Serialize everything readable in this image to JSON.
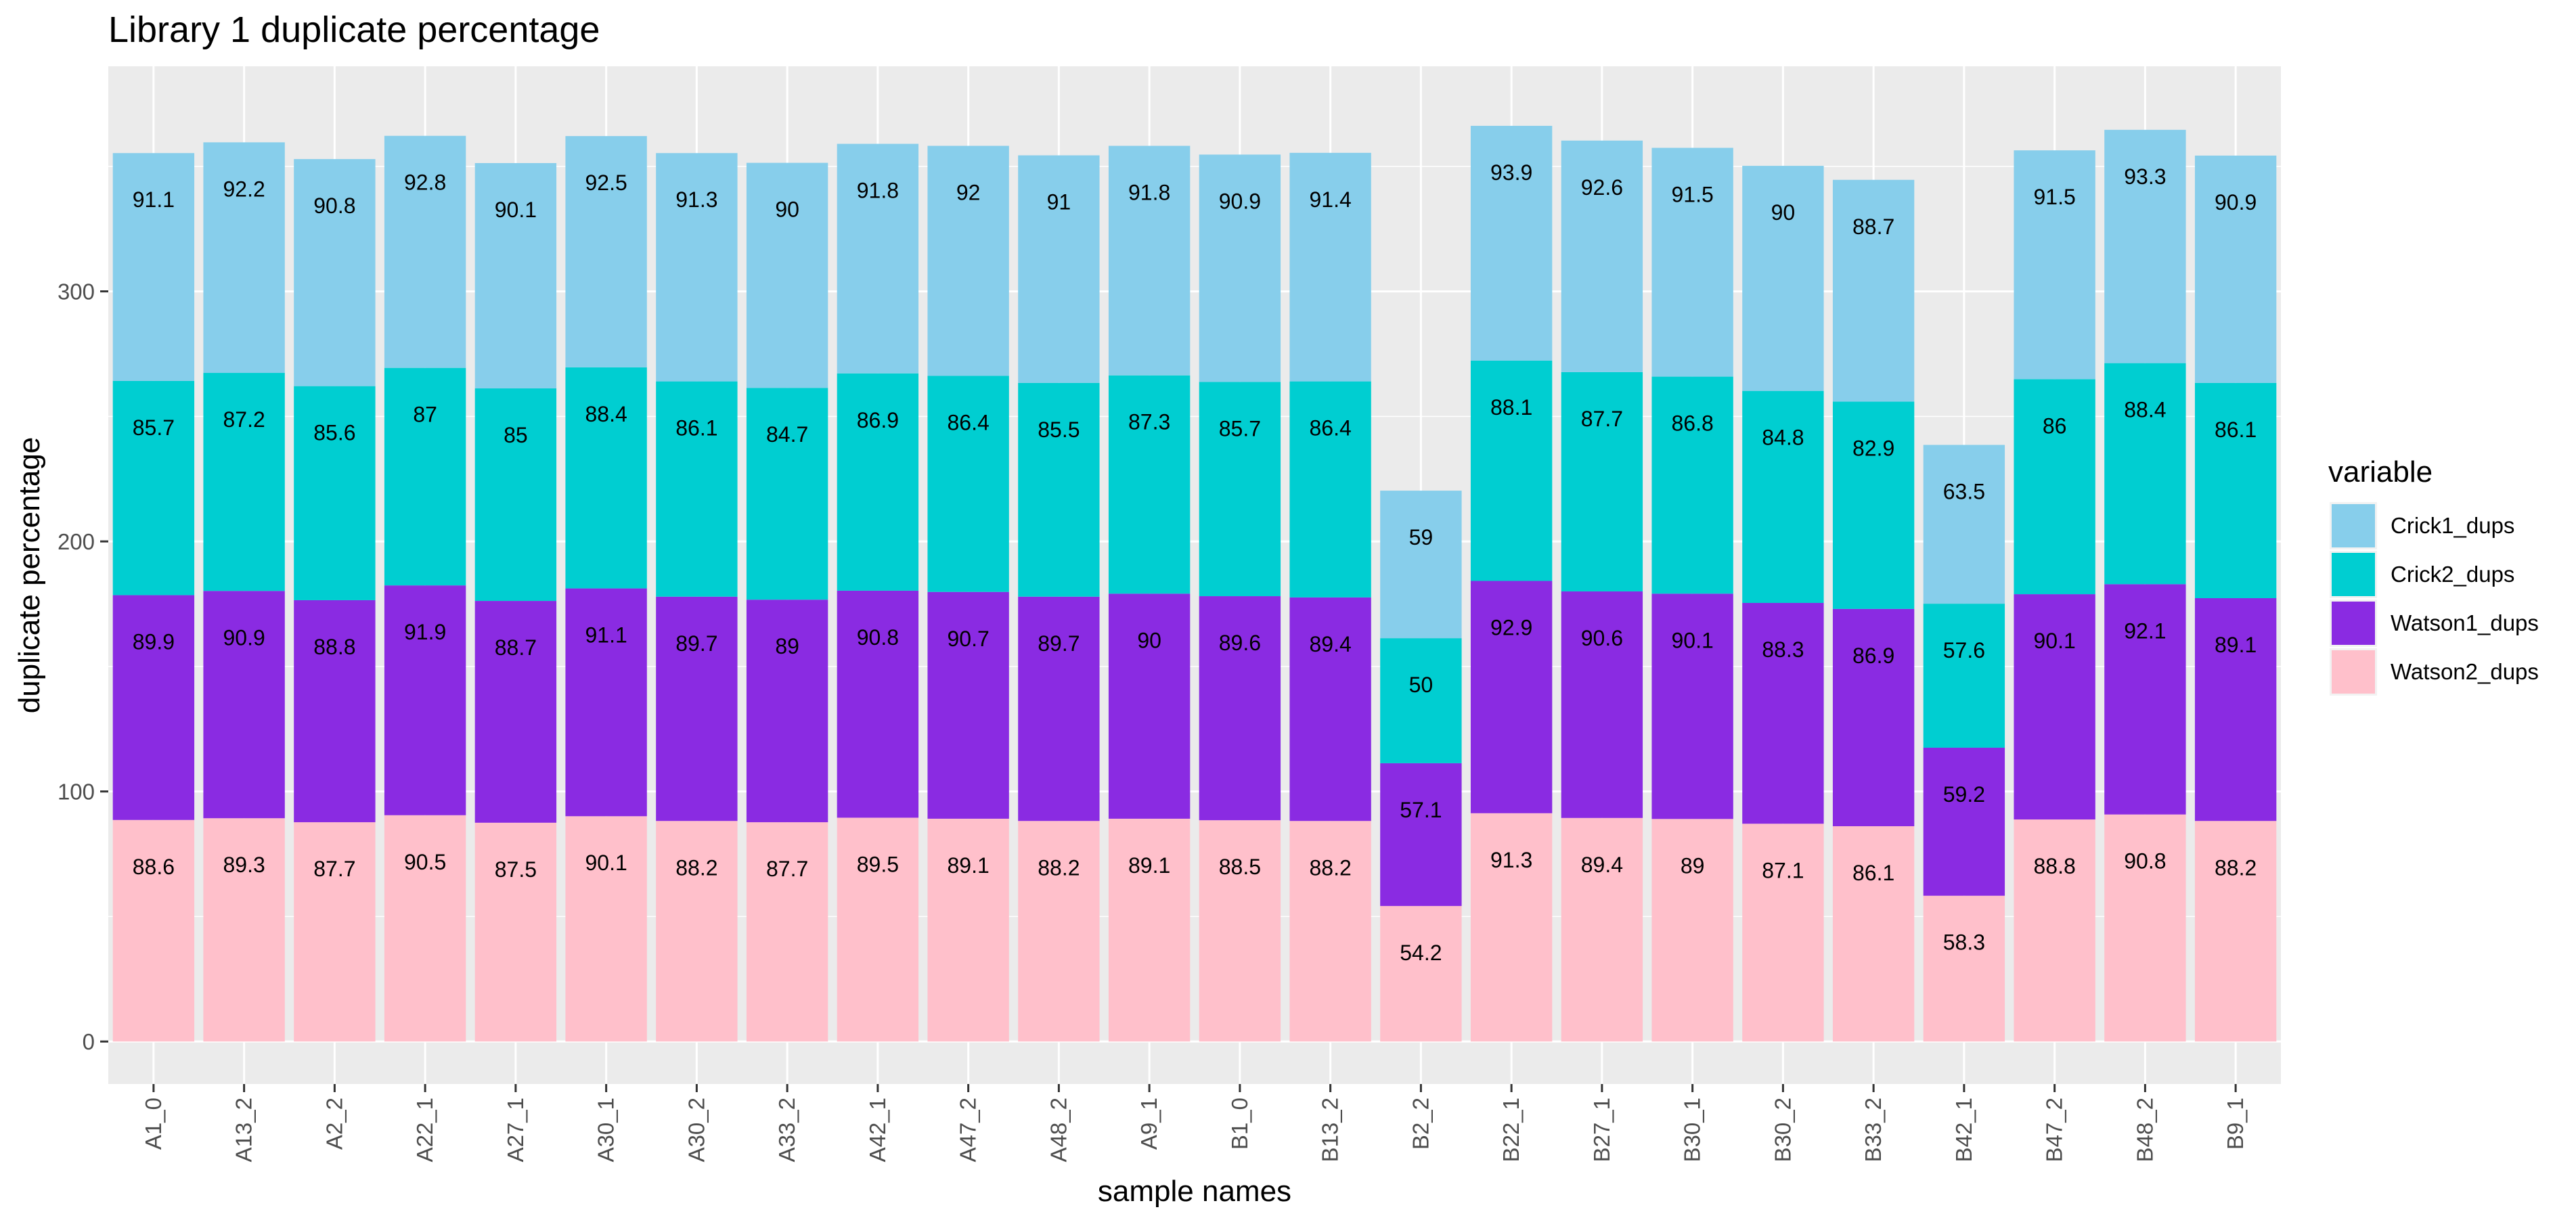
{
  "chart_data": {
    "type": "bar",
    "stacked": true,
    "title": "Library 1 duplicate percentage",
    "xlabel": "sample names",
    "ylabel": "duplicate percentage",
    "ylim": [
      -17,
      390
    ],
    "yticks": [
      0,
      100,
      200,
      300
    ],
    "grid": true,
    "legend_position": "right",
    "legend_title": "variable",
    "categories": [
      "A1_0",
      "A13_2",
      "A2_2",
      "A22_1",
      "A27_1",
      "A30_1",
      "A30_2",
      "A33_2",
      "A42_1",
      "A47_2",
      "A48_2",
      "A9_1",
      "B1_0",
      "B13_2",
      "B2_2",
      "B22_1",
      "B27_1",
      "B30_1",
      "B30_2",
      "B33_2",
      "B42_1",
      "B47_2",
      "B48_2",
      "B9_1"
    ],
    "series": [
      {
        "name": "Watson2_dups",
        "color": "#ffc0cb",
        "values": [
          88.6,
          89.3,
          87.7,
          90.5,
          87.5,
          90.1,
          88.2,
          87.7,
          89.5,
          89.1,
          88.2,
          89.1,
          88.5,
          88.2,
          54.2,
          91.3,
          89.4,
          89.0,
          87.1,
          86.1,
          58.3,
          88.8,
          90.8,
          88.2
        ]
      },
      {
        "name": "Watson1_dups",
        "color": "#8a2be2",
        "values": [
          89.9,
          90.9,
          88.8,
          91.9,
          88.7,
          91.1,
          89.7,
          89.0,
          90.8,
          90.7,
          89.7,
          90.0,
          89.6,
          89.4,
          57.1,
          92.9,
          90.6,
          90.1,
          88.3,
          86.9,
          59.2,
          90.1,
          92.1,
          89.1
        ]
      },
      {
        "name": "Crick2_dups",
        "color": "#00ced1",
        "values": [
          85.7,
          87.2,
          85.6,
          87.0,
          85.0,
          88.4,
          86.1,
          84.7,
          86.9,
          86.4,
          85.5,
          87.3,
          85.7,
          86.4,
          50.0,
          88.1,
          87.7,
          86.8,
          84.8,
          82.9,
          57.6,
          86.0,
          88.4,
          86.1
        ]
      },
      {
        "name": "Crick1_dups",
        "color": "#87ceeb",
        "values": [
          91.1,
          92.2,
          90.8,
          92.8,
          90.1,
          92.5,
          91.3,
          90.0,
          91.8,
          92.0,
          91.0,
          91.8,
          90.9,
          91.4,
          59.0,
          93.9,
          92.6,
          91.5,
          90.0,
          88.7,
          63.5,
          91.5,
          93.3,
          90.9
        ]
      }
    ],
    "segment_labels": [
      [
        "88.6",
        "89.3",
        "87.7",
        "90.5",
        "87.5",
        "90.1",
        "88.2",
        "87.7",
        "89.5",
        "89.1",
        "88.2",
        "89.1",
        "88.5",
        "88.2",
        "54.2",
        "91.3",
        "89.4",
        "89",
        "87.1",
        "86.1",
        "58.3",
        "88.8",
        "90.8",
        "88.2"
      ],
      [
        "89.9",
        "90.9",
        "88.8",
        "91.9",
        "88.7",
        "91.1",
        "89.7",
        "89",
        "90.8",
        "90.7",
        "89.7",
        "90",
        "89.6",
        "89.4",
        "57.1",
        "92.9",
        "90.6",
        "90.1",
        "88.3",
        "86.9",
        "59.2",
        "90.1",
        "92.1",
        "89.1"
      ],
      [
        "85.7",
        "87.2",
        "85.6",
        "87",
        "85",
        "88.4",
        "86.1",
        "84.7",
        "86.9",
        "86.4",
        "85.5",
        "87.3",
        "85.7",
        "86.4",
        "50",
        "88.1",
        "87.7",
        "86.8",
        "84.8",
        "82.9",
        "57.6",
        "86",
        "88.4",
        "86.1"
      ],
      [
        "91.1",
        "92.2",
        "90.8",
        "92.8",
        "90.1",
        "92.5",
        "91.3",
        "90",
        "91.8",
        "92",
        "91",
        "91.8",
        "90.9",
        "91.4",
        "59",
        "93.9",
        "92.6",
        "91.5",
        "90",
        "88.7",
        "63.5",
        "91.5",
        "93.3",
        "90.9"
      ]
    ],
    "legend_order": [
      "Crick1_dups",
      "Crick2_dups",
      "Watson1_dups",
      "Watson2_dups"
    ]
  },
  "style": {
    "panel_background": "#ebebeb",
    "grid_color": "#ffffff"
  }
}
